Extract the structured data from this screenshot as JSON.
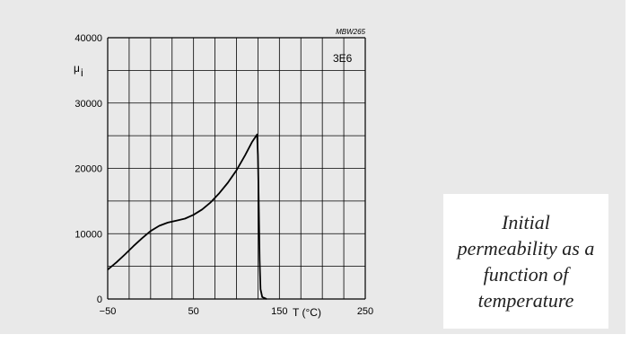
{
  "caption": "Initial permeability as a function of temperature",
  "chart_data": {
    "type": "line",
    "code_label": "MBW265",
    "material_label": "3E6",
    "ylabel": "μ",
    "ylabel_sub": "i",
    "xlabel": "T (°C)",
    "xlim": [
      -50,
      250
    ],
    "ylim": [
      0,
      40000
    ],
    "x_tick_labels": [
      {
        "value": -50,
        "label": "−50"
      },
      {
        "value": 50,
        "label": "50"
      },
      {
        "value": 150,
        "label": "150"
      },
      {
        "value": 250,
        "label": "250"
      }
    ],
    "y_tick_labels": [
      {
        "value": 0,
        "label": "0"
      },
      {
        "value": 10000,
        "label": "10000"
      },
      {
        "value": 20000,
        "label": "20000"
      },
      {
        "value": 30000,
        "label": "30000"
      },
      {
        "value": 40000,
        "label": "40000"
      }
    ],
    "grid": true,
    "series": [
      {
        "x": [
          -50,
          -40,
          -30,
          -20,
          -10,
          0,
          10,
          20,
          30,
          40,
          50,
          60,
          70,
          80,
          90,
          100,
          110,
          118,
          124,
          125,
          126,
          127,
          128,
          130,
          135
        ],
        "y": [
          4500,
          5600,
          6800,
          8100,
          9300,
          10400,
          11200,
          11700,
          12000,
          12300,
          12900,
          13700,
          14800,
          16200,
          17800,
          19700,
          22000,
          24000,
          25200,
          22000,
          14000,
          6000,
          1500,
          300,
          0
        ]
      }
    ]
  }
}
